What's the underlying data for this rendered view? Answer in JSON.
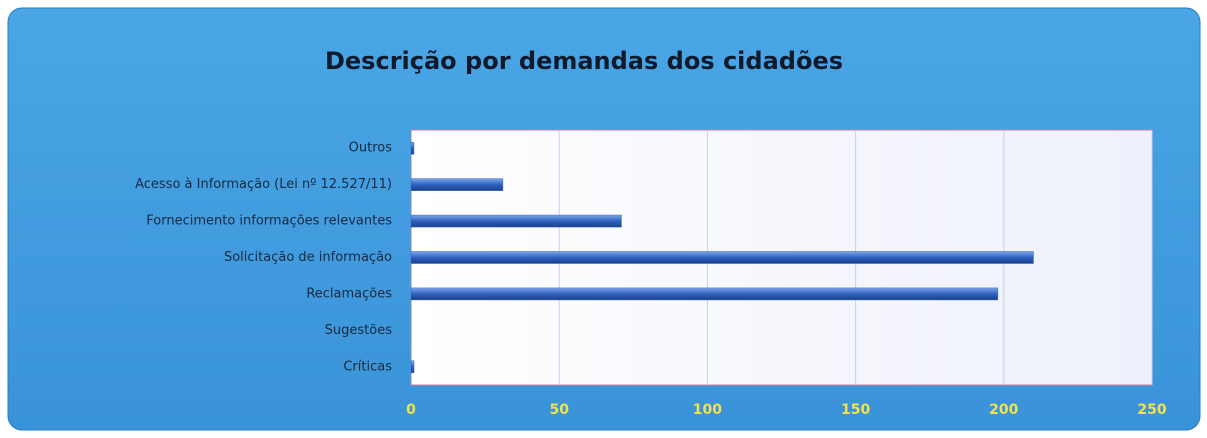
{
  "chart_data": {
    "type": "bar",
    "orientation": "horizontal",
    "title": "Descrição por demandas dos cidadões",
    "categories": [
      "Outros",
      "Acesso à Informação (Lei nº 12.527/11)",
      "Fornecimento informações relevantes",
      "Solicitação de informação",
      "Reclamações",
      "Sugestões",
      "Críticas"
    ],
    "values": [
      1,
      31,
      71,
      210,
      198,
      0,
      1
    ],
    "color": "#2f62c0",
    "xlim": [
      0,
      250
    ],
    "xticks": [
      0,
      50,
      100,
      150,
      200,
      250
    ],
    "grid": true
  }
}
